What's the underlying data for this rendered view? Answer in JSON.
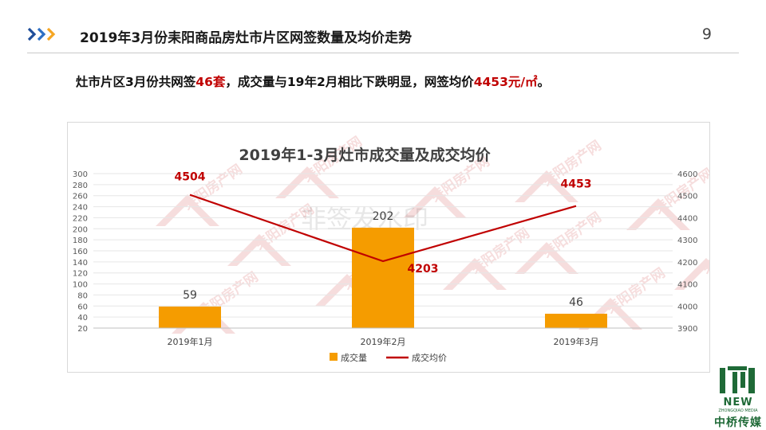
{
  "header": {
    "title": "2019年3月份耒阳商品房灶市片区网签数量及均价走势",
    "page_number": "9"
  },
  "summary": {
    "part1": "灶市片区3月份共网签",
    "count": "46套",
    "part2": "，成交量与19年2月相比下跌明显，网签均价",
    "price": "4453元/㎡",
    "part3": "。"
  },
  "watermark": {
    "brand": "耒阳房产网",
    "center_text": "非签发水印"
  },
  "logo": {
    "new": "NEW",
    "sub": "ZHONGQIAO MEDIA",
    "cn": "中桥传媒"
  },
  "colors": {
    "bar": "#f59c00",
    "line": "#c00000",
    "accent": "#1f4e9a",
    "logo": "#1f6a37"
  },
  "chart_data": {
    "type": "bar",
    "title": "2019年1-3月灶市成交量及成交均价",
    "categories": [
      "2019年1月",
      "2019年2月",
      "2019年3月"
    ],
    "series": [
      {
        "name": "成交量",
        "type": "bar",
        "axis": "left",
        "values": [
          59,
          202,
          46
        ]
      },
      {
        "name": "成交均价",
        "type": "line",
        "axis": "right",
        "values": [
          4504,
          4203,
          4453
        ]
      }
    ],
    "y_left": {
      "min": 20,
      "max": 300,
      "step": 20
    },
    "y_right": {
      "min": 3900,
      "max": 4600,
      "step": 100
    },
    "legend_position": "bottom",
    "grid": true
  }
}
